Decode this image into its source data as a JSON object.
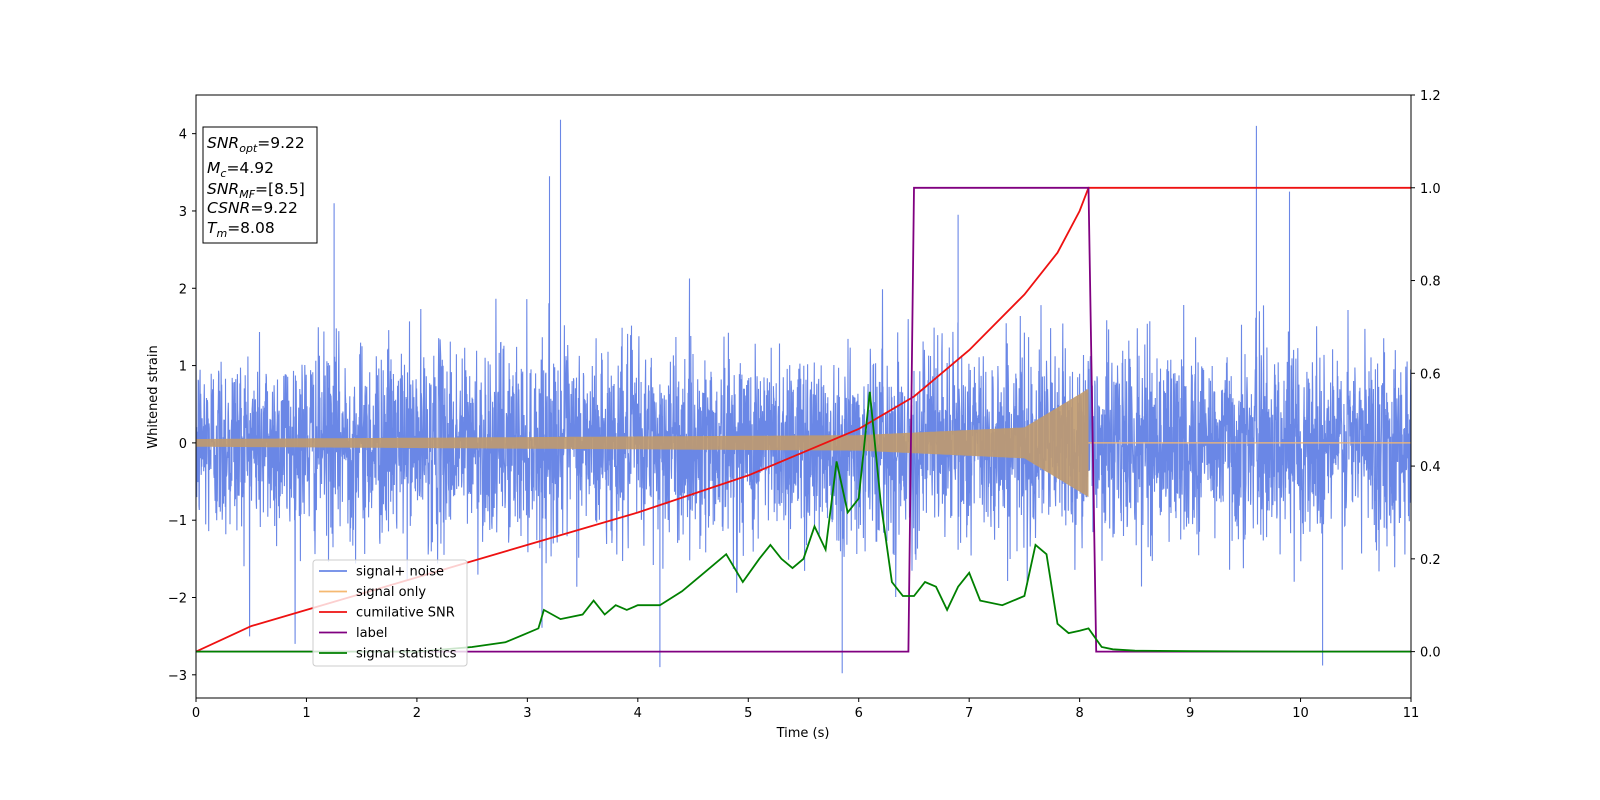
{
  "chart_data": {
    "type": "line",
    "xlabel": "Time (s)",
    "ylabel": "Whitened strain",
    "xlim": [
      0,
      11
    ],
    "ylim": [
      -3.3,
      4.5
    ],
    "y2lim": [
      -0.1,
      1.2
    ],
    "xticks": [
      "0",
      "1",
      "2",
      "3",
      "4",
      "5",
      "6",
      "7",
      "8",
      "9",
      "10",
      "11"
    ],
    "yticks": [
      "−3",
      "−2",
      "−1",
      "0",
      "1",
      "2",
      "3",
      "4"
    ],
    "y2ticks": [
      "0.0",
      "0.2",
      "0.4",
      "0.6",
      "0.8",
      "1.0",
      "1.2"
    ],
    "grid": false,
    "legend_position": "lower-left",
    "info_box": [
      "SNR",
      "opt",
      "=9.22",
      "M",
      "c",
      "=4.92",
      "SNR",
      "MF",
      "=[8.5]",
      "CSNR",
      "=9.22",
      "T",
      "m",
      "=8.08"
    ],
    "series": [
      {
        "name": "signal+ noise",
        "axis": "left",
        "color": "#6a87e6",
        "noise_sigma": 0.62,
        "rough_range": [
          -2.9,
          4.2
        ],
        "notable_spikes": [
          [
            3.2,
            3.45
          ],
          [
            3.3,
            4.18
          ],
          [
            9.6,
            4.1
          ],
          [
            9.9,
            3.25
          ],
          [
            1.25,
            3.1
          ],
          [
            6.9,
            2.95
          ],
          [
            5.85,
            -2.98
          ],
          [
            4.2,
            -2.9
          ],
          [
            10.2,
            -2.88
          ]
        ]
      },
      {
        "name": "signal only",
        "axis": "left",
        "color": "#f5b971",
        "type": "chirp",
        "t_merger": 8.08,
        "amplitude_envelope": [
          [
            0,
            0.05
          ],
          [
            6,
            0.1
          ],
          [
            7.5,
            0.2
          ],
          [
            8.08,
            0.7
          ]
        ]
      },
      {
        "name": "cumilative SNR",
        "axis": "right",
        "color": "#ee1111",
        "x": [
          0,
          0.5,
          1,
          2,
          3,
          4,
          5,
          5.5,
          6,
          6.5,
          7,
          7.5,
          7.8,
          8.0,
          8.08,
          8.1,
          11
        ],
        "values": [
          0,
          0.055,
          0.09,
          0.16,
          0.23,
          0.3,
          0.38,
          0.43,
          0.48,
          0.55,
          0.65,
          0.77,
          0.86,
          0.95,
          1.0,
          1.0,
          1.0
        ]
      },
      {
        "name": "label",
        "axis": "right",
        "color": "#800080",
        "x": [
          0,
          6.45,
          6.5,
          8.08,
          8.15,
          11
        ],
        "values": [
          0,
          0,
          1,
          1,
          0,
          0
        ]
      },
      {
        "name": "signal statistics",
        "axis": "right",
        "color": "#008000",
        "x": [
          0,
          1,
          2,
          2.5,
          2.8,
          3.0,
          3.1,
          3.15,
          3.3,
          3.5,
          3.6,
          3.7,
          3.8,
          3.9,
          4.0,
          4.2,
          4.4,
          4.6,
          4.8,
          4.95,
          5.1,
          5.2,
          5.3,
          5.4,
          5.5,
          5.6,
          5.7,
          5.8,
          5.9,
          6.0,
          6.1,
          6.2,
          6.3,
          6.4,
          6.5,
          6.6,
          6.7,
          6.8,
          6.9,
          7.0,
          7.1,
          7.3,
          7.4,
          7.5,
          7.6,
          7.7,
          7.8,
          7.9,
          8.0,
          8.08,
          8.2,
          8.3,
          8.5,
          9.0,
          10.0,
          11.0
        ],
        "values": [
          0,
          0,
          0,
          0.01,
          0.02,
          0.04,
          0.05,
          0.09,
          0.07,
          0.08,
          0.11,
          0.08,
          0.1,
          0.09,
          0.1,
          0.1,
          0.13,
          0.17,
          0.21,
          0.15,
          0.2,
          0.23,
          0.2,
          0.18,
          0.2,
          0.27,
          0.22,
          0.41,
          0.3,
          0.33,
          0.56,
          0.32,
          0.15,
          0.12,
          0.12,
          0.15,
          0.14,
          0.09,
          0.14,
          0.17,
          0.11,
          0.1,
          0.11,
          0.12,
          0.23,
          0.21,
          0.06,
          0.04,
          0.045,
          0.05,
          0.01,
          0.005,
          0.002,
          0.001,
          0,
          0
        ]
      }
    ]
  }
}
